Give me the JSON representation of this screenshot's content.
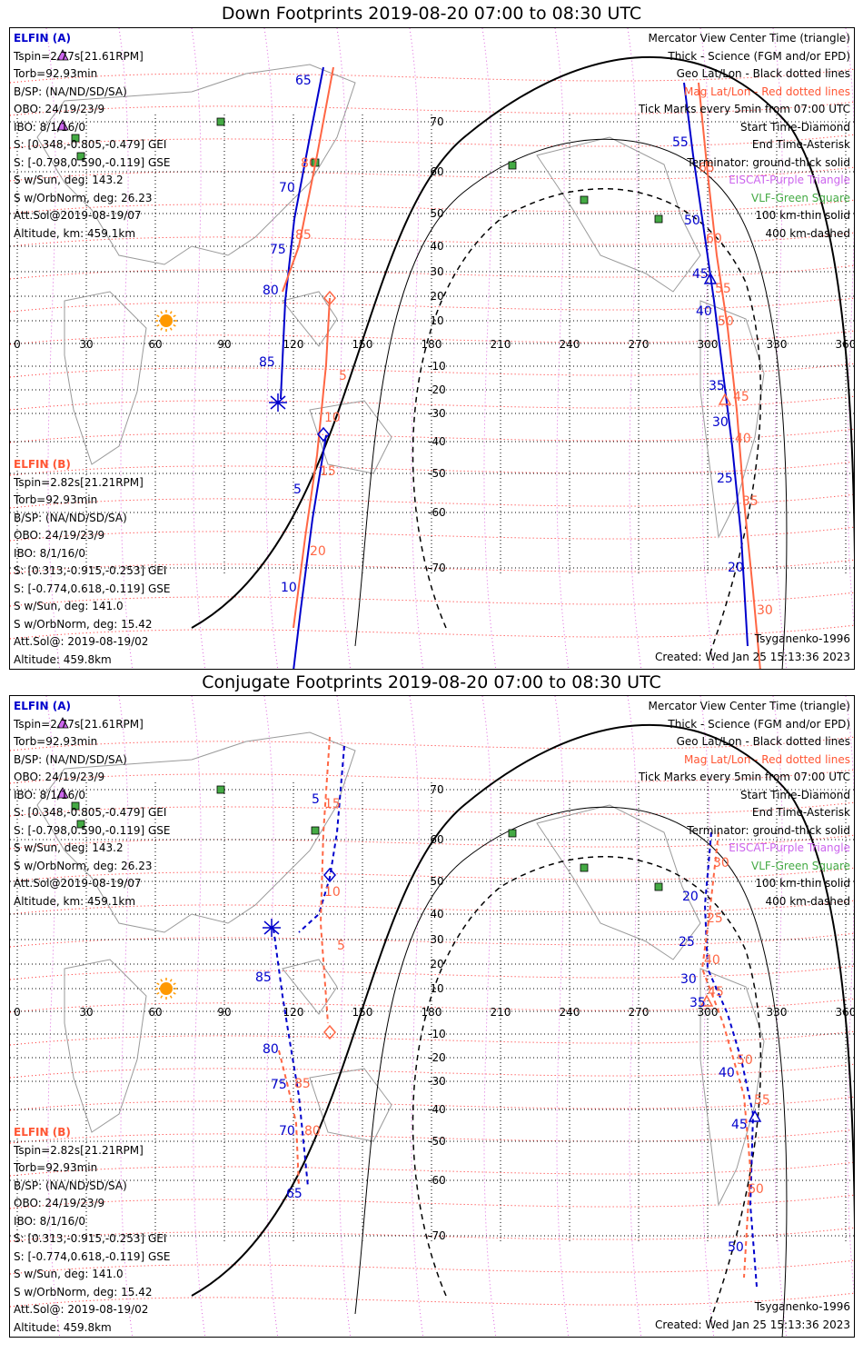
{
  "panels": [
    {
      "id": "down",
      "title": "Down Footprints 2019-08-20 07:00 to 08:30 UTC",
      "elfin_a": {
        "label": "ELFIN (A)",
        "lines": [
          "Tspin=2.77s[21.61RPM]",
          "Torb=92.93min",
          "B/SP: (NA/ND/SD/SA)",
          "OBO: 24/19/23/9",
          "IBO: 8/1/16/0",
          "S: [0.348,-0.805,-0.479] GEI",
          "S: [-0.798,0.590,-0.119] GSE",
          "S w/Sun, deg: 143.2",
          "S w/OrbNorm, deg: 26.23",
          "Att.Sol@2019-08-19/07",
          "Altitude, km: 459.1km"
        ]
      },
      "elfin_b": {
        "label": "ELFIN (B)",
        "lines": [
          "Tspin=2.82s[21.21RPM]",
          "Torb=92.93min",
          "B/SP: (NA/ND/SD/SA)",
          "OBO: 24/19/23/9",
          "IBO: 8/1/16/0",
          "S: [0.313,-0.915,-0.253] GEI",
          "S: [-0.774,0.618,-0.119] GSE",
          "S w/Sun, deg: 141.0",
          "S w/OrbNorm, deg: 15.42",
          "Att.Sol@: 2019-08-19/02",
          "Altitude: 459.8km"
        ]
      },
      "legend": [
        {
          "text": "Mercator View Center Time (triangle)",
          "color": "#000000"
        },
        {
          "text": "Thick - Science (FGM and/or EPD)",
          "color": "#000000"
        },
        {
          "text": "Geo Lat/Lon - Black dotted lines",
          "color": "#000000"
        },
        {
          "text": "Mag Lat/Lon - Red dotted lines",
          "color": "#ff3333"
        },
        {
          "text": "Tick Marks every 5min from 07:00 UTC",
          "color": "#000000"
        },
        {
          "text": "Start Time-Diamond",
          "color": "#000000"
        },
        {
          "text": "End Time-Asterisk",
          "color": "#000000"
        },
        {
          "text": "Terminator: ground-thick solid",
          "color": "#000000"
        },
        {
          "text": "EISCAT-Purple Triangle",
          "color": "#cc66ee"
        },
        {
          "text": "VLF-Green Square",
          "color": "#44aa44"
        },
        {
          "text": "100 km-thin solid",
          "color": "#000000"
        },
        {
          "text": "400 km-dashed",
          "color": "#000000"
        }
      ],
      "model": "Tsyganenko-1996",
      "created": "Created: Wed Jan 25 15:13:36 2023",
      "tick_labels_a": [
        "65",
        "70",
        "75",
        "80",
        "85",
        "55",
        "50",
        "45",
        "40",
        "35",
        "30",
        "25",
        "20"
      ],
      "tick_labels_b": [
        "80",
        "85",
        "5",
        "10",
        "15",
        "20",
        "60",
        "65",
        "70",
        "75",
        "80",
        "35",
        "40",
        "45",
        "50",
        "55",
        "30"
      ]
    },
    {
      "id": "conj",
      "title": "Conjugate Footprints 2019-08-20 07:00 to 08:30 UTC",
      "elfin_a": {
        "label": "ELFIN (A)",
        "lines": [
          "Tspin=2.77s[21.61RPM]",
          "Torb=92.93min",
          "B/SP: (NA/ND/SD/SA)",
          "OBO: 24/19/23/9",
          "IBO: 8/1/16/0",
          "S: [0.348,-0.805,-0.479] GEI",
          "S: [-0.798,0.590,-0.119] GSE",
          "S w/Sun, deg: 143.2",
          "S w/OrbNorm, deg: 26.23",
          "Att.Sol@2019-08-19/07",
          "Altitude, km: 459.1km"
        ]
      },
      "elfin_b": {
        "label": "ELFIN (B)",
        "lines": [
          "Tspin=2.82s[21.21RPM]",
          "Torb=92.93min",
          "B/SP: (NA/ND/SD/SA)",
          "OBO: 24/19/23/9",
          "IBO: 8/1/16/0",
          "S: [0.313,-0.915,-0.253] GEI",
          "S: [-0.774,0.618,-0.119] GSE",
          "S w/Sun, deg: 141.0",
          "S w/OrbNorm, deg: 15.42",
          "Att.Sol@: 2019-08-19/02",
          "Altitude: 459.8km"
        ]
      },
      "legend": [
        {
          "text": "Mercator View Center Time (triangle)",
          "color": "#000000"
        },
        {
          "text": "Thick - Science (FGM and/or EPD)",
          "color": "#000000"
        },
        {
          "text": "Geo Lat/Lon - Black dotted lines",
          "color": "#000000"
        },
        {
          "text": "Mag Lat/Lon - Red dotted lines",
          "color": "#ff3333"
        },
        {
          "text": "Tick Marks every 5min from 07:00 UTC",
          "color": "#000000"
        },
        {
          "text": "Start Time-Diamond",
          "color": "#000000"
        },
        {
          "text": "End Time-Asterisk",
          "color": "#000000"
        },
        {
          "text": "Terminator: ground-thick solid",
          "color": "#000000"
        },
        {
          "text": "EISCAT-Purple Triangle",
          "color": "#cc66ee"
        },
        {
          "text": "VLF-Green Square",
          "color": "#44aa44"
        },
        {
          "text": "100 km-thin solid",
          "color": "#000000"
        },
        {
          "text": "400 km-dashed",
          "color": "#000000"
        }
      ],
      "model": "Tsyganenko-1996",
      "created": "Created: Wed Jan 25 15:13:36 2023"
    }
  ],
  "map_axes": {
    "lon_ticks": [
      "0",
      "30",
      "60",
      "90",
      "120",
      "150",
      "180",
      "210",
      "240",
      "270",
      "300",
      "330",
      "360"
    ],
    "lat_ticks": [
      "70",
      "60",
      "50",
      "40",
      "30",
      "20",
      "10",
      "-10",
      "-20",
      "-30",
      "-40",
      "-50",
      "-60",
      "-70"
    ]
  },
  "colors": {
    "elfin_a": "#0000cc",
    "elfin_b": "#ff6644",
    "mag_grid": "#ff2222",
    "eiscat": "#cc66ee",
    "vlf": "#44aa44",
    "sun": "#ff9900",
    "coast": "#9a9a9a"
  }
}
